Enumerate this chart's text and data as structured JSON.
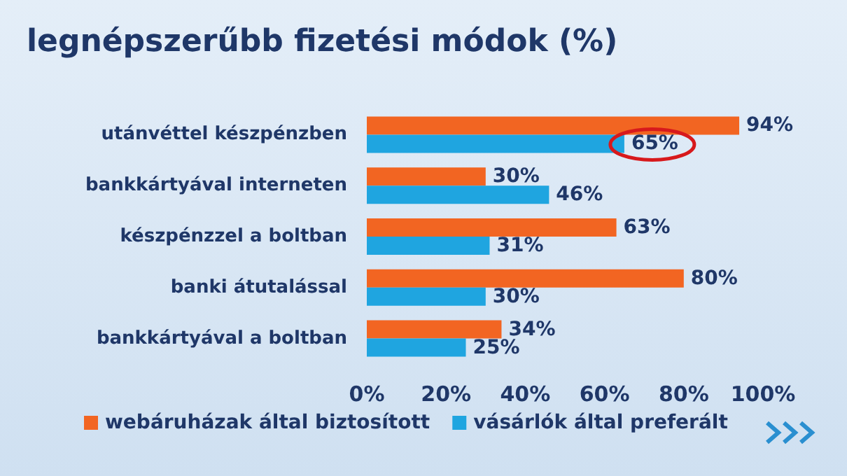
{
  "chart_data": {
    "type": "bar",
    "orientation": "horizontal",
    "title": "legnépszerűbb fizetési módok (%)",
    "categories": [
      "utánvéttel készpénzben",
      "bankkártyával interneten",
      "készpénzzel a boltban",
      "banki átutalással",
      "bankkártyával a boltban"
    ],
    "series": [
      {
        "name": "webáruházak által biztosított",
        "color": "#f26522",
        "values": [
          94,
          30,
          63,
          80,
          34
        ],
        "value_labels": [
          "94%",
          "30%",
          "63%",
          "80%",
          "34%"
        ]
      },
      {
        "name": "vásárlók által preferált",
        "color": "#1fa5e0",
        "values": [
          65,
          46,
          31,
          30,
          25
        ],
        "value_labels": [
          "65%",
          "46%",
          "31%",
          "30%",
          "25%"
        ]
      }
    ],
    "xlim": [
      0,
      100
    ],
    "xticks": [
      {
        "value": 0,
        "label": "0%"
      },
      {
        "value": 20,
        "label": "20%"
      },
      {
        "value": 40,
        "label": "40%"
      },
      {
        "value": 60,
        "label": "60%"
      },
      {
        "value": 80,
        "label": "80%"
      },
      {
        "value": 100,
        "label": "100%"
      }
    ],
    "legend": "bottom",
    "grid": false
  }
}
